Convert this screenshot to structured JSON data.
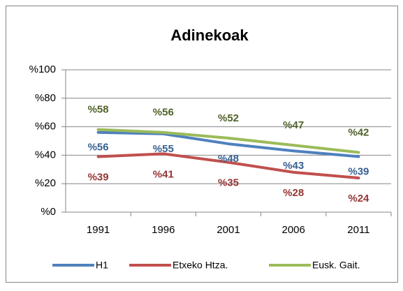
{
  "chart_data": {
    "type": "line",
    "title": "Adinekoak",
    "categories": [
      "1991",
      "1996",
      "2001",
      "2006",
      "2011"
    ],
    "series": [
      {
        "name": "H1",
        "color": "#4f81bd",
        "values": [
          56,
          55,
          48,
          43,
          39
        ],
        "value_labels": [
          "%56",
          "%55",
          "%48",
          "%43",
          "%39"
        ],
        "label_color": "#376092"
      },
      {
        "name": "Etxeko Htza.",
        "color": "#c0504d",
        "values": [
          39,
          41,
          35,
          28,
          24
        ],
        "value_labels": [
          "%39",
          "%41",
          "%35",
          "%28",
          "%24"
        ],
        "label_color": "#943634"
      },
      {
        "name": "Eusk. Gait.",
        "color": "#9bbb59",
        "values": [
          58,
          56,
          52,
          47,
          42
        ],
        "value_labels": [
          "%58",
          "%56",
          "%52",
          "%47",
          "%42"
        ],
        "label_color": "#4f6228"
      }
    ],
    "ylim": [
      0,
      100
    ],
    "yticks": [
      {
        "value": 0,
        "label": "%0"
      },
      {
        "value": 20,
        "label": "%20"
      },
      {
        "value": 40,
        "label": "%40"
      },
      {
        "value": 60,
        "label": "%60"
      },
      {
        "value": 80,
        "label": "%80"
      },
      {
        "value": 100,
        "label": "%100"
      }
    ],
    "grid": true,
    "legend": "bottom"
  }
}
